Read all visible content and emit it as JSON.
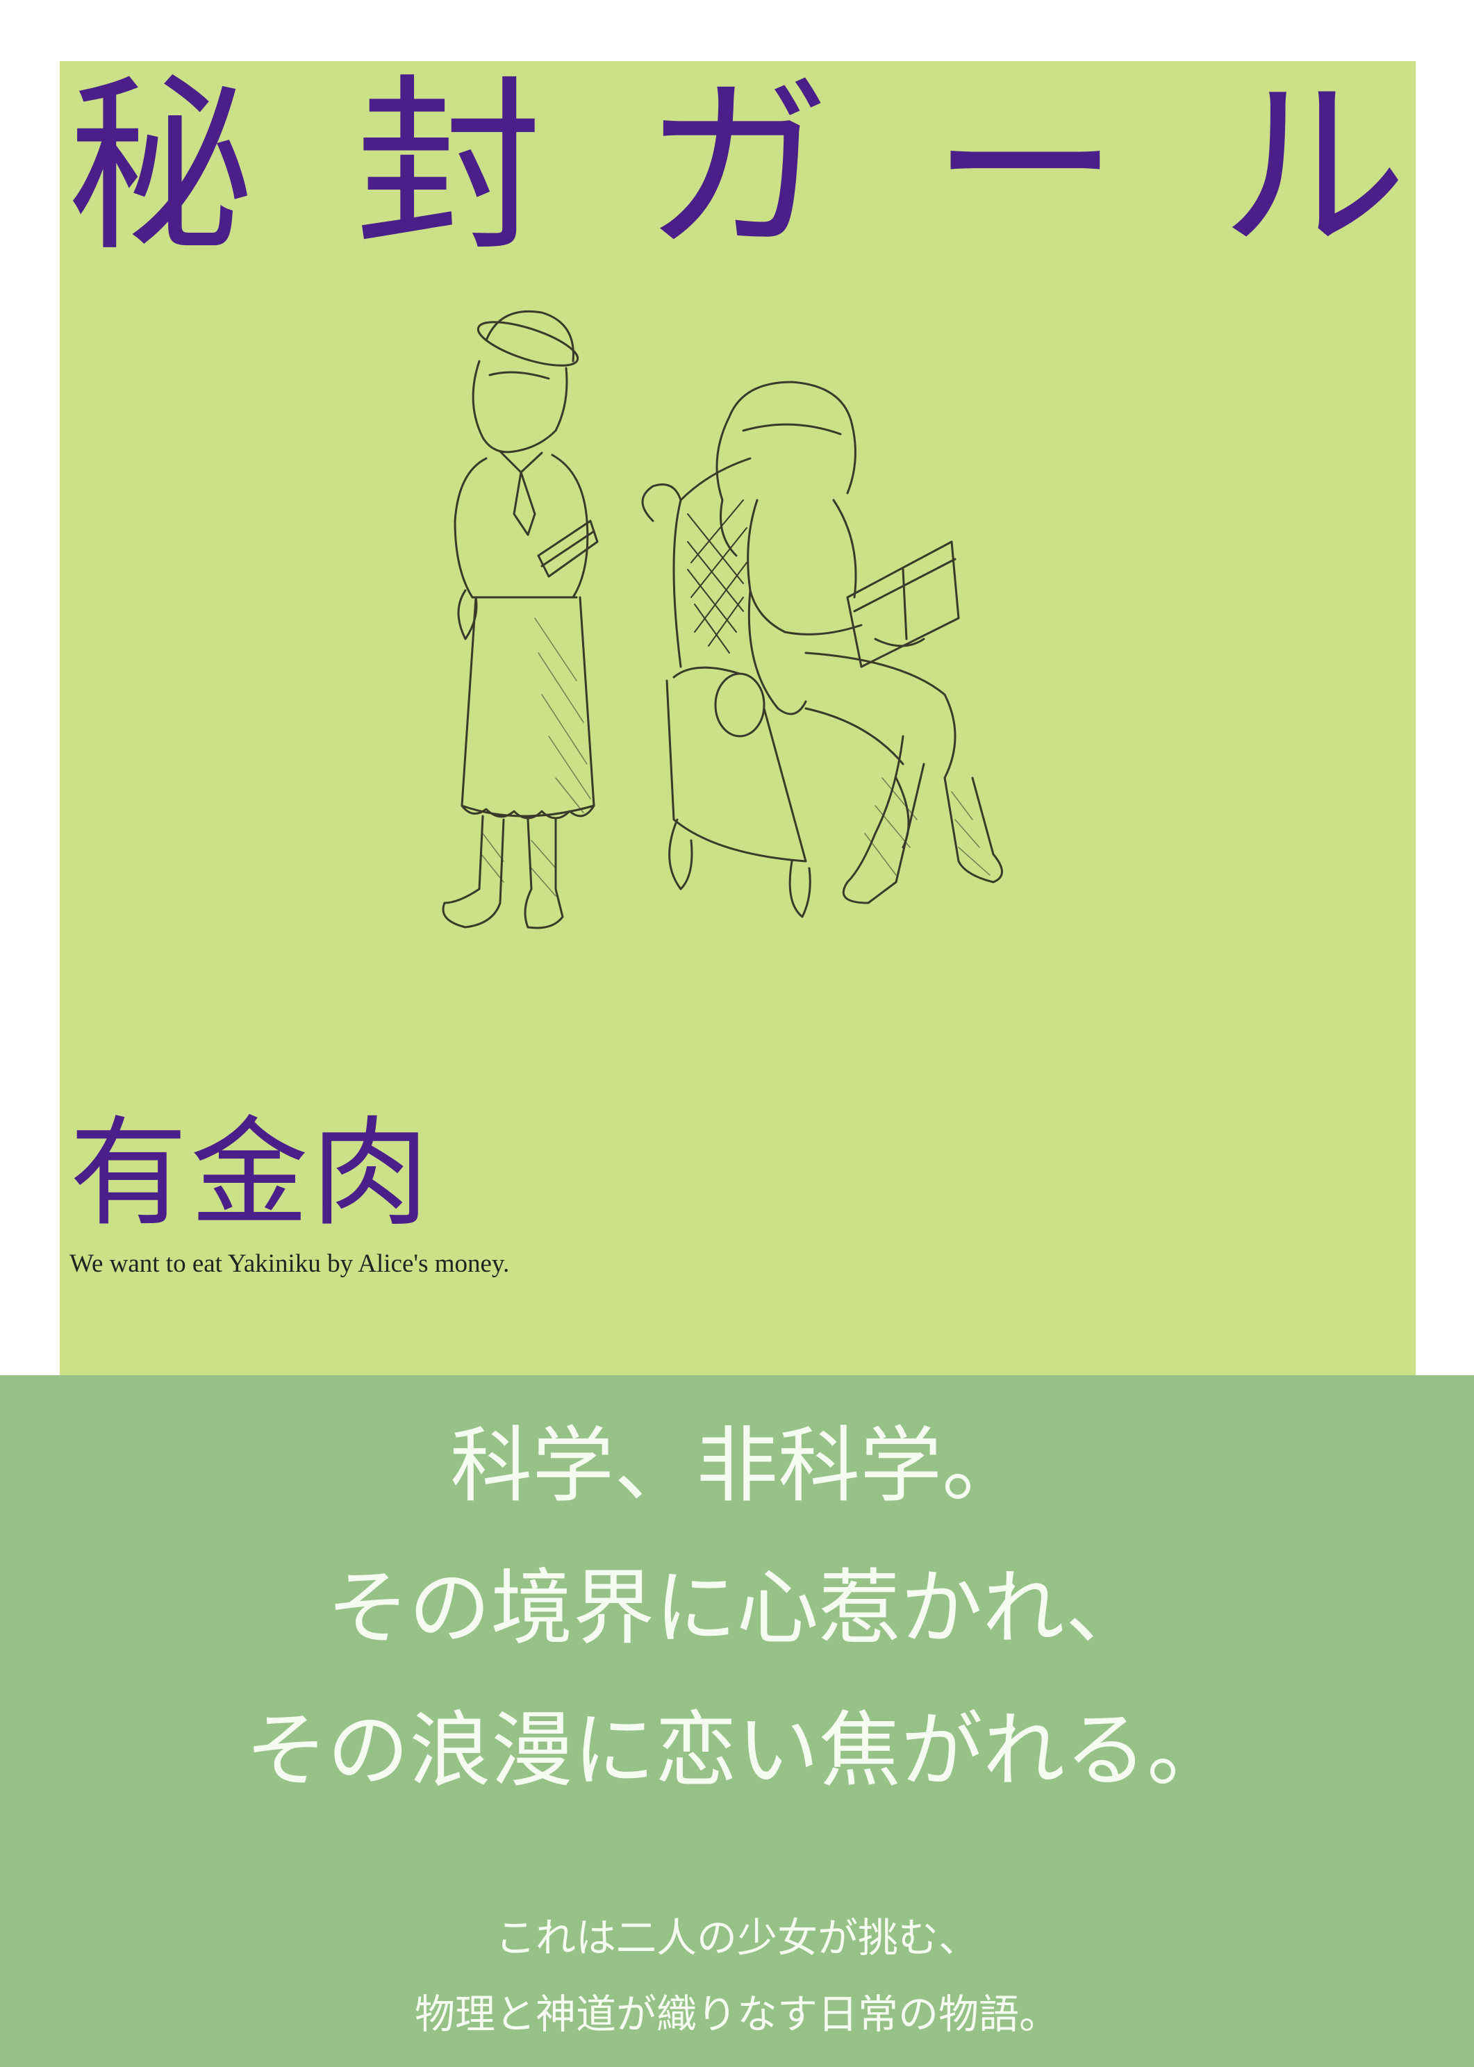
{
  "cover": {
    "title_chars": [
      "秘",
      "封",
      "ガ",
      "ー",
      "ル"
    ],
    "author": "有金肉",
    "tagline": "We want to eat Yakiniku by Alice's money.",
    "illustration_label": "two-girls-sketch",
    "panel_color": "#cbe087",
    "title_color": "#4a1f8a"
  },
  "band": {
    "color": "#96c187",
    "catchphrase": [
      "科学、非科学。",
      "その境界に心惹かれ、",
      "その浪漫に恋い焦がれる。"
    ],
    "description": [
      "これは二人の少女が挑む、",
      "物理と神道が織りなす日常の物語。"
    ]
  }
}
